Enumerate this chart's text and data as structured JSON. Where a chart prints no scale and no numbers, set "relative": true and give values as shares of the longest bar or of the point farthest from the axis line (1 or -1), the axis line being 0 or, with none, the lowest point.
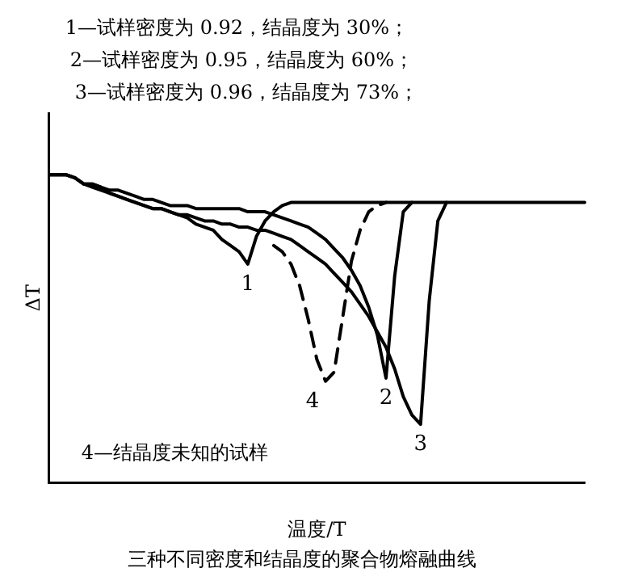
{
  "chart_data": {
    "type": "line",
    "relative": true,
    "title": "三种不同密度和结晶度的聚合物熔融曲线",
    "xlabel": "温度/T",
    "ylabel": "ΔT",
    "annotations": [
      "1—试样密度为 0.92，结晶度为 30%；",
      "2—试样密度为 0.95，结晶度为 60%；",
      "3—试样密度为 0.96，结晶度为 73%；",
      "4—结晶度未知的试样"
    ],
    "categories": [
      null,
      null,
      null,
      null,
      null,
      null,
      null,
      null,
      null,
      null,
      null,
      null,
      null,
      null,
      null,
      null,
      null,
      null,
      null,
      null,
      null,
      null,
      null,
      null,
      null,
      null,
      null,
      null,
      null,
      null,
      null,
      null,
      null,
      null,
      null,
      null,
      null,
      null,
      null,
      null,
      null,
      null,
      null,
      null,
      null,
      null,
      null,
      null,
      null,
      null,
      null,
      null,
      null,
      null,
      null,
      null,
      null,
      null,
      null,
      null,
      null,
      null,
      null
    ],
    "series": [
      {
        "name": "1",
        "color": "#000000",
        "values": [
          1.0,
          1.0,
          1.0,
          0.99,
          0.97,
          0.96,
          0.95,
          0.94,
          0.93,
          0.92,
          0.91,
          0.9,
          0.89,
          0.89,
          0.88,
          0.87,
          0.86,
          0.84,
          0.83,
          0.82,
          0.79,
          0.77,
          0.75,
          0.71,
          0.8,
          0.85,
          0.88,
          0.9,
          0.91,
          0.91,
          0.91,
          0.91,
          0.91,
          0.91,
          0.91,
          0.91,
          0.91,
          0.91,
          0.91,
          0.91,
          0.91,
          0.91,
          0.91,
          0.91,
          0.91,
          0.91,
          0.91,
          0.91,
          0.91,
          0.91,
          0.91,
          0.91,
          0.91,
          0.91,
          0.91,
          0.91,
          0.91,
          0.91,
          0.91,
          0.91,
          0.91,
          0.91,
          0.91
        ]
      },
      {
        "name": "2",
        "color": "#000000",
        "values": [
          1.0,
          1.0,
          1.0,
          0.99,
          0.97,
          0.97,
          0.96,
          0.95,
          0.95,
          0.94,
          0.93,
          0.92,
          0.92,
          0.91,
          0.9,
          0.9,
          0.9,
          0.89,
          0.89,
          0.89,
          0.89,
          0.89,
          0.89,
          0.88,
          0.88,
          0.88,
          0.87,
          0.86,
          0.85,
          0.84,
          0.83,
          0.81,
          0.79,
          0.76,
          0.73,
          0.69,
          0.64,
          0.57,
          0.48,
          0.34,
          0.67,
          0.88,
          0.91,
          null,
          null,
          null,
          null,
          null,
          null,
          null,
          null,
          null,
          null,
          null,
          null,
          null,
          null,
          null,
          null,
          null,
          null,
          null,
          null
        ]
      },
      {
        "name": "3",
        "color": "#000000",
        "values": [
          1.0,
          1.0,
          1.0,
          0.99,
          0.97,
          0.97,
          0.96,
          0.94,
          0.93,
          0.92,
          0.91,
          0.9,
          0.89,
          0.89,
          0.88,
          0.87,
          0.87,
          0.86,
          0.85,
          0.85,
          0.84,
          0.84,
          0.83,
          0.83,
          0.82,
          0.82,
          0.81,
          0.8,
          0.79,
          0.77,
          0.75,
          0.73,
          0.71,
          0.68,
          0.65,
          0.62,
          0.58,
          0.54,
          0.49,
          0.44,
          0.37,
          0.28,
          0.22,
          0.19,
          0.59,
          0.85,
          0.91,
          null,
          null,
          null,
          null,
          null,
          null,
          null,
          null,
          null,
          null,
          null,
          null,
          null,
          null,
          null,
          null
        ]
      },
      {
        "name": "4",
        "color": "#000000",
        "line_style": "dashed",
        "values": [
          null,
          null,
          null,
          null,
          null,
          null,
          null,
          null,
          null,
          null,
          null,
          null,
          null,
          null,
          null,
          null,
          null,
          null,
          null,
          null,
          null,
          null,
          null,
          null,
          null,
          null,
          0.77,
          0.75,
          0.71,
          0.64,
          0.53,
          0.4,
          0.33,
          0.36,
          0.54,
          0.72,
          0.82,
          0.88,
          0.9,
          0.91,
          null,
          null,
          null,
          null,
          null,
          null,
          null,
          null,
          null,
          null,
          null,
          null,
          null,
          null,
          null,
          null,
          null,
          null,
          null,
          null,
          null,
          null,
          null
        ]
      }
    ],
    "grid": false,
    "legend": false,
    "marker": "none"
  }
}
